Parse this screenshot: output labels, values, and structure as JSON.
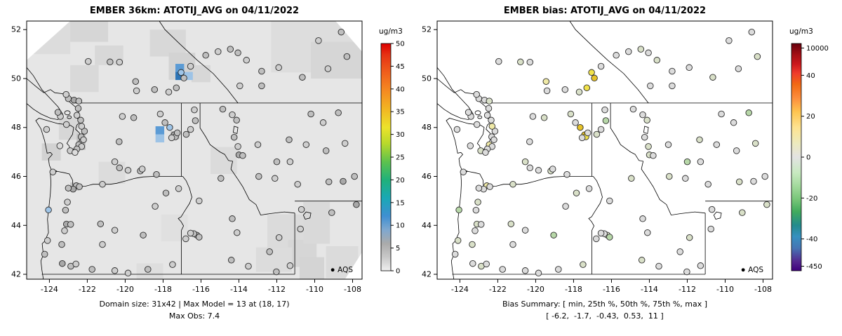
{
  "chart_data": {
    "type": "scatter",
    "subtype": "two-panel-map-scatter-with-raster",
    "projection_window": {
      "lon": [
        -125.2,
        -107.5
      ],
      "lat": [
        41.8,
        52.35
      ]
    },
    "x_ticks": [
      -124,
      -122,
      -120,
      -118,
      -116,
      -114,
      -112,
      -110,
      -108
    ],
    "y_ticks": [
      52,
      50,
      48,
      46,
      44,
      42
    ],
    "legend_label": "AQS",
    "panels": [
      {
        "title": "EMBER 36km: ATOTIJ_AVG on 04/11/2022",
        "captions": [
          "Domain size: 31x42 | Max Model = 13 at (18, 17)",
          "Max Obs: 7.4"
        ],
        "raster": true,
        "color_index": 2,
        "colorbar": {
          "title": "ug/m3",
          "labels": [
            "50",
            "45",
            "40",
            "35",
            "30",
            "25",
            "20",
            "15",
            "10",
            "5",
            "0"
          ],
          "fracs": [
            0,
            0.1,
            0.2,
            0.3,
            0.4,
            0.5,
            0.6,
            0.7,
            0.8,
            0.9,
            1
          ],
          "stops": [
            [
              0,
              "#dd0000"
            ],
            [
              0.05,
              "#e63214"
            ],
            [
              0.13,
              "#f0601c"
            ],
            [
              0.21,
              "#f58b21"
            ],
            [
              0.29,
              "#f2b622"
            ],
            [
              0.37,
              "#ece32b"
            ],
            [
              0.44,
              "#b8d92b"
            ],
            [
              0.52,
              "#5ec24d"
            ],
            [
              0.6,
              "#1fb17a"
            ],
            [
              0.68,
              "#1aa8b5"
            ],
            [
              0.76,
              "#3f8fd2"
            ],
            [
              0.82,
              "#7fa8cf"
            ],
            [
              0.88,
              "#aaaaaa"
            ],
            [
              0.94,
              "#c8c8c8"
            ],
            [
              1,
              "#efefef"
            ]
          ]
        }
      },
      {
        "title": "EMBER bias: ATOTIJ_AVG on 04/11/2022",
        "captions": [
          "Bias Summary: [ min, 25th %, 50th %, 75th %, max ]",
          "[ -6.2,  -1.7,  -0.43,  0.53,  11 ]"
        ],
        "raster": false,
        "color_index": 3,
        "colorbar": {
          "title": "ug/m3",
          "labels": [
            "10000",
            "40",
            "20",
            "0",
            "-20",
            "-40",
            "-450"
          ],
          "fracs": [
            0.02,
            0.14,
            0.32,
            0.5,
            0.68,
            0.86,
            0.98
          ],
          "stops": [
            [
              0,
              "#67000d"
            ],
            [
              0.05,
              "#a50f15"
            ],
            [
              0.09,
              "#cb181d"
            ],
            [
              0.13,
              "#ef3b2c"
            ],
            [
              0.18,
              "#f16913"
            ],
            [
              0.24,
              "#fd8d3c"
            ],
            [
              0.3,
              "#fec44f"
            ],
            [
              0.37,
              "#fee391"
            ],
            [
              0.44,
              "#eceabe"
            ],
            [
              0.5,
              "#e3e3e3"
            ],
            [
              0.57,
              "#c7e9c0"
            ],
            [
              0.63,
              "#a1d99b"
            ],
            [
              0.69,
              "#74c476"
            ],
            [
              0.74,
              "#41ab5d"
            ],
            [
              0.8,
              "#238b8d"
            ],
            [
              0.85,
              "#3690c0"
            ],
            [
              0.9,
              "#4575b4"
            ],
            [
              0.96,
              "#54278f"
            ],
            [
              1,
              "#3f007d"
            ]
          ]
        }
      }
    ],
    "left_palette": [
      "#dcdcdc",
      "#cecece",
      "#bfbfbf",
      "#a8a8a8",
      "#8f8f8f",
      "#9fc5e8",
      "#5b9bd5"
    ],
    "right_palette": [
      "#dcdcdc",
      "#d3d3d3",
      "#d9e0c8",
      "#b7d7a8",
      "#93c47d",
      "#f1e24b",
      "#e6c229",
      "#efe9a6",
      "#76b5a0"
    ],
    "raster": {
      "base_color": "#e6e6e6",
      "patches": [
        [
          -125.2,
          52.35,
          2.3,
          1.35,
          "#dcdcdc"
        ],
        [
          -122.9,
          52.35,
          2.0,
          0.85,
          "#d6d6d6"
        ],
        [
          -112.3,
          52.35,
          4.8,
          2.1,
          "#dddddd"
        ],
        [
          -110.2,
          51.5,
          2.7,
          1.5,
          "#d6d6d6"
        ],
        [
          -121.6,
          51.35,
          1.5,
          0.8,
          "#d8d8d8"
        ],
        [
          -118.7,
          52.0,
          1.9,
          1.1,
          "#d8d8d8"
        ],
        [
          -124.4,
          47.35,
          1.0,
          0.7,
          "#d2d2d2"
        ],
        [
          -123.5,
          48.4,
          1.0,
          0.9,
          "#d7d7d7"
        ],
        [
          -122.9,
          50.55,
          1.5,
          1.1,
          "#d9d9d9"
        ],
        [
          -117.7,
          51.05,
          1.4,
          1.1,
          "#d3d3d3"
        ],
        [
          -116.5,
          50.55,
          1.0,
          0.7,
          "#d7d7d7"
        ],
        [
          -115.5,
          47.2,
          1.4,
          1.1,
          "#dbdbdb"
        ],
        [
          -112.5,
          44.45,
          2.3,
          1.4,
          "#dbdbdb"
        ],
        [
          -111.4,
          43.4,
          1.5,
          1.1,
          "#d6d6d6"
        ],
        [
          -113.1,
          43.1,
          1.9,
          1.0,
          "#dcdcdc"
        ],
        [
          -110.6,
          44.95,
          1.4,
          1.7,
          "#d9d9d9"
        ],
        [
          -109.4,
          43.15,
          1.7,
          1.3,
          "#dbdbdb"
        ],
        [
          -110.8,
          42.7,
          1.3,
          0.9,
          "#d4d4d4"
        ],
        [
          -119.4,
          42.45,
          1.4,
          0.9,
          "#dedede"
        ],
        [
          -121.4,
          46.6,
          1.4,
          0.9,
          "#dcdcdc"
        ],
        [
          -118.1,
          44.45,
          1.4,
          1.1,
          "#e0e0e0"
        ]
      ],
      "cells": [
        [
          -117.35,
          50.6,
          0.46,
          0.33,
          "#5b9bd5"
        ],
        [
          -117.35,
          50.27,
          0.46,
          0.33,
          "#2e75b6"
        ],
        [
          -116.89,
          50.27,
          0.46,
          0.33,
          "#9dc3e6"
        ],
        [
          -118.4,
          48.05,
          0.46,
          0.33,
          "#5b9bd5"
        ],
        [
          -118.4,
          47.72,
          0.46,
          0.33,
          "#9dc3e6"
        ],
        [
          -122.56,
          47.75,
          0.46,
          0.33,
          "#c0c0c0"
        ],
        [
          -122.56,
          47.42,
          0.46,
          0.33,
          "#b9b9b9"
        ],
        [
          -122.9,
          45.75,
          0.46,
          0.33,
          "#c6c6c6"
        ],
        [
          -117.6,
          47.85,
          0.46,
          0.33,
          "#c2c2c2"
        ]
      ],
      "wedges": [
        [
          [
            -125.2,
            52.35
          ],
          [
            -122.9,
            52.35
          ],
          [
            -125.2,
            50.75
          ]
        ],
        [
          [
            -108.9,
            52.35
          ],
          [
            -107.5,
            52.35
          ],
          [
            -107.5,
            51.1
          ]
        ],
        [
          [
            -107.5,
            41.8
          ],
          [
            -107.5,
            42.9
          ],
          [
            -108.4,
            41.8
          ]
        ]
      ]
    },
    "stations": [
      [
        -122.32,
        47.62,
        2,
        0
      ],
      [
        -122.2,
        47.5,
        1,
        0
      ],
      [
        -122.45,
        47.3,
        2,
        7
      ],
      [
        -122.3,
        47.22,
        1,
        0
      ],
      [
        -122.55,
        47.12,
        2,
        0
      ],
      [
        -122.9,
        47.05,
        1,
        2
      ],
      [
        -122.65,
        46.98,
        0,
        0
      ],
      [
        -122.15,
        47.85,
        2,
        0
      ],
      [
        -122.3,
        48.05,
        1,
        7
      ],
      [
        -122.35,
        48.3,
        2,
        0
      ],
      [
        -122.55,
        48.5,
        1,
        0
      ],
      [
        -122.48,
        48.78,
        2,
        0
      ],
      [
        -123.45,
        47.25,
        0,
        0
      ],
      [
        -124.15,
        47.92,
        1,
        0
      ],
      [
        -123.1,
        48.12,
        1,
        0
      ],
      [
        -123.0,
        49.18,
        2,
        0
      ],
      [
        -122.7,
        49.12,
        3,
        0
      ],
      [
        -122.45,
        49.08,
        2,
        2
      ],
      [
        -123.12,
        49.35,
        1,
        0
      ],
      [
        -123.42,
        48.45,
        1,
        0
      ],
      [
        -123.55,
        48.62,
        2,
        0
      ],
      [
        -121.95,
        50.7,
        1,
        0
      ],
      [
        -120.8,
        50.68,
        2,
        2
      ],
      [
        -120.3,
        50.67,
        1,
        0
      ],
      [
        -119.45,
        49.88,
        2,
        7
      ],
      [
        -119.4,
        49.5,
        1,
        0
      ],
      [
        -118.45,
        49.55,
        2,
        0
      ],
      [
        -117.7,
        49.45,
        1,
        2
      ],
      [
        -117.3,
        49.62,
        2,
        5
      ],
      [
        -117.05,
        50.25,
        5,
        5
      ],
      [
        -116.9,
        50.02,
        2,
        6
      ],
      [
        -116.55,
        50.5,
        1,
        0
      ],
      [
        -115.75,
        50.95,
        2,
        0
      ],
      [
        -115.1,
        51.1,
        1,
        0
      ],
      [
        -114.45,
        51.2,
        2,
        2
      ],
      [
        -114.05,
        51.05,
        2,
        0
      ],
      [
        -113.6,
        50.75,
        1,
        2
      ],
      [
        -112.8,
        50.3,
        2,
        0
      ],
      [
        -111.9,
        50.45,
        1,
        0
      ],
      [
        -110.65,
        50.05,
        2,
        2
      ],
      [
        -113.95,
        49.7,
        1,
        0
      ],
      [
        -112.8,
        49.7,
        2,
        0
      ],
      [
        -109.3,
        50.4,
        1,
        0
      ],
      [
        -108.3,
        50.9,
        2,
        2
      ],
      [
        -109.8,
        51.55,
        1,
        0
      ],
      [
        -108.6,
        51.9,
        2,
        0
      ],
      [
        -117.42,
        47.7,
        3,
        6
      ],
      [
        -117.35,
        47.62,
        2,
        5
      ],
      [
        -117.55,
        47.58,
        1,
        0
      ],
      [
        -117.25,
        47.78,
        2,
        0
      ],
      [
        -117.65,
        48.0,
        5,
        6
      ],
      [
        -118.15,
        48.55,
        1,
        2
      ],
      [
        -117.9,
        48.2,
        2,
        0
      ],
      [
        -120.32,
        47.42,
        2,
        0
      ],
      [
        -120.55,
        46.6,
        1,
        2
      ],
      [
        -120.3,
        46.35,
        2,
        0
      ],
      [
        -119.85,
        46.25,
        1,
        0
      ],
      [
        -119.2,
        46.22,
        2,
        2
      ],
      [
        -119.1,
        46.3,
        1,
        0
      ],
      [
        -118.35,
        46.08,
        2,
        0
      ],
      [
        -120.15,
        48.45,
        1,
        0
      ],
      [
        -119.55,
        48.4,
        2,
        2
      ],
      [
        -122.58,
        45.62,
        2,
        7
      ],
      [
        -122.75,
        45.48,
        3,
        0
      ],
      [
        -122.42,
        45.58,
        2,
        0
      ],
      [
        -121.2,
        45.68,
        1,
        2
      ],
      [
        -123.0,
        45.52,
        2,
        0
      ],
      [
        -123.05,
        44.95,
        1,
        2
      ],
      [
        -123.15,
        44.62,
        2,
        0
      ],
      [
        -123.1,
        44.05,
        3,
        2
      ],
      [
        -122.88,
        44.04,
        2,
        0
      ],
      [
        -123.2,
        43.78,
        1,
        0
      ],
      [
        -123.35,
        43.22,
        2,
        2
      ],
      [
        -123.32,
        42.44,
        3,
        0
      ],
      [
        -122.87,
        42.33,
        2,
        2
      ],
      [
        -122.6,
        42.42,
        1,
        0
      ],
      [
        -121.75,
        42.2,
        2,
        0
      ],
      [
        -120.55,
        42.15,
        1,
        0
      ],
      [
        -123.82,
        46.18,
        1,
        0
      ],
      [
        -124.05,
        44.63,
        5,
        3
      ],
      [
        -124.1,
        43.38,
        1,
        2
      ],
      [
        -124.25,
        42.82,
        2,
        0
      ],
      [
        -121.3,
        44.06,
        2,
        2
      ],
      [
        -121.2,
        43.22,
        1,
        0
      ],
      [
        -120.55,
        43.8,
        1,
        0
      ],
      [
        -119.05,
        43.6,
        2,
        3
      ],
      [
        -118.42,
        44.78,
        1,
        0
      ],
      [
        -117.85,
        45.32,
        2,
        2
      ],
      [
        -117.18,
        45.5,
        1,
        0
      ],
      [
        -116.22,
        43.6,
        3,
        2
      ],
      [
        -116.38,
        43.66,
        2,
        0
      ],
      [
        -116.1,
        43.52,
        2,
        3
      ],
      [
        -116.55,
        43.68,
        1,
        0
      ],
      [
        -116.8,
        43.45,
        1,
        0
      ],
      [
        -114.4,
        42.58,
        2,
        2
      ],
      [
        -113.5,
        42.33,
        1,
        0
      ],
      [
        -112.38,
        42.92,
        2,
        0
      ],
      [
        -111.88,
        43.5,
        1,
        2
      ],
      [
        -112.02,
        42.1,
        2,
        0
      ],
      [
        -111.3,
        42.35,
        1,
        0
      ],
      [
        -116.1,
        45.0,
        1,
        0
      ],
      [
        -114.95,
        45.92,
        2,
        2
      ],
      [
        -114.1,
        43.7,
        1,
        0
      ],
      [
        -114.35,
        44.27,
        2,
        0
      ],
      [
        -116.78,
        47.72,
        2,
        2
      ],
      [
        -116.55,
        47.92,
        1,
        0
      ],
      [
        -116.3,
        48.28,
        2,
        3
      ],
      [
        -116.35,
        48.72,
        1,
        0
      ],
      [
        -114.12,
        48.3,
        2,
        2
      ],
      [
        -114.35,
        48.52,
        1,
        0
      ],
      [
        -114.85,
        48.75,
        2,
        0
      ],
      [
        -114.05,
        47.22,
        1,
        2
      ],
      [
        -114.25,
        47.6,
        2,
        0
      ],
      [
        -113.0,
        47.3,
        1,
        0
      ],
      [
        -114.0,
        46.88,
        3,
        2
      ],
      [
        -113.8,
        46.85,
        2,
        0
      ],
      [
        -112.95,
        46.0,
        2,
        2
      ],
      [
        -112.1,
        45.92,
        1,
        0
      ],
      [
        -112.0,
        46.6,
        2,
        3
      ],
      [
        -111.3,
        46.6,
        1,
        0
      ],
      [
        -111.35,
        47.5,
        2,
        2
      ],
      [
        -110.45,
        47.3,
        1,
        0
      ],
      [
        -109.4,
        47.05,
        2,
        0
      ],
      [
        -108.4,
        47.35,
        1,
        2
      ],
      [
        -110.2,
        48.55,
        2,
        0
      ],
      [
        -109.55,
        48.2,
        1,
        0
      ],
      [
        -108.75,
        48.6,
        2,
        3
      ],
      [
        -110.9,
        45.68,
        1,
        0
      ],
      [
        -109.25,
        45.78,
        2,
        2
      ],
      [
        -108.5,
        45.8,
        3,
        0
      ],
      [
        -110.7,
        44.65,
        1,
        0
      ],
      [
        -109.1,
        44.52,
        2,
        2
      ],
      [
        -110.75,
        43.85,
        1,
        0
      ],
      [
        -107.8,
        44.85,
        3,
        2
      ],
      [
        -107.9,
        46.0,
        2,
        0
      ],
      [
        -119.85,
        42.05,
        1,
        0
      ],
      [
        -118.8,
        42.2,
        2,
        0
      ],
      [
        -117.5,
        42.4,
        1,
        2
      ]
    ]
  }
}
